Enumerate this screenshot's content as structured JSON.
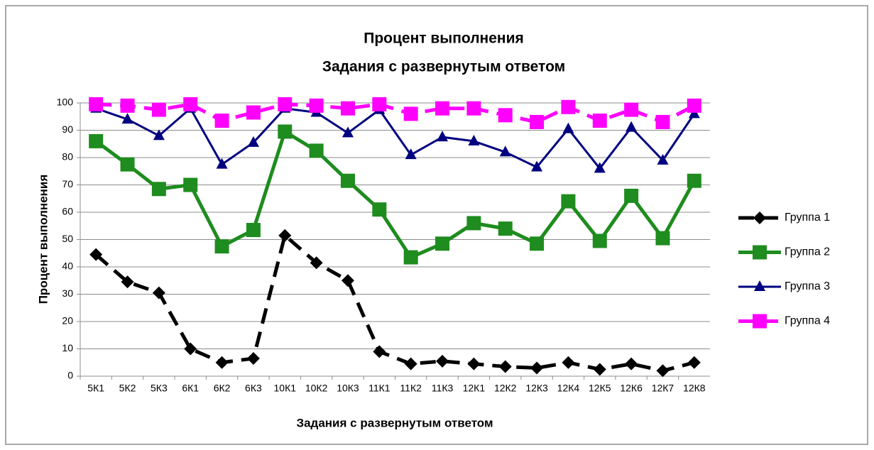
{
  "chart_data": {
    "type": "line",
    "title": "Процент выполнения",
    "subtitle": "Задания с развернутым ответом",
    "x_label": "Задания с развернутым ответом",
    "y_label": "Процент выполнения",
    "categories": [
      "5К1",
      "5К2",
      "5К3",
      "6К1",
      "6К2",
      "6К3",
      "10К1",
      "10К2",
      "10К3",
      "11К1",
      "11К2",
      "11К3",
      "12К1",
      "12К2",
      "12К3",
      "12К4",
      "12К5",
      "12К6",
      "12К7",
      "12К8"
    ],
    "series": [
      {
        "name": "Группа 1",
        "color": "#000000",
        "marker": "diamond",
        "dash": true,
        "values": [
          44.5,
          34.5,
          30.5,
          10,
          5,
          6.5,
          51.5,
          41.5,
          35,
          9,
          4.5,
          5.5,
          4.5,
          3.5,
          3,
          5,
          2.5,
          4.5,
          2,
          5
        ]
      },
      {
        "name": "Группа 2",
        "color": "#1e8c1e",
        "marker": "square",
        "dash": false,
        "values": [
          86,
          77.5,
          68.5,
          70,
          47.5,
          53.5,
          89.5,
          82.5,
          71.5,
          61,
          43.5,
          48.5,
          56,
          54,
          48.5,
          64,
          49.5,
          66,
          50.5,
          71.5
        ]
      },
      {
        "name": "Группа 3",
        "color": "#000080",
        "marker": "triangle",
        "dash": false,
        "values": [
          98,
          94,
          88,
          98,
          77.5,
          85.5,
          98,
          96.5,
          89,
          97.5,
          81,
          87.5,
          86,
          82,
          76.5,
          90.5,
          76,
          91,
          79,
          96
        ]
      },
      {
        "name": "Группа 4",
        "color": "#ff00ff",
        "marker": "square",
        "dash": true,
        "values": [
          99.5,
          99,
          97.5,
          99.5,
          93.5,
          96.5,
          99.5,
          99,
          98,
          99.5,
          96,
          98,
          98,
          95.5,
          93,
          98.5,
          93.5,
          97.5,
          93,
          99
        ]
      }
    ],
    "ylim": [
      0,
      100
    ],
    "yticks": [
      0,
      10,
      20,
      30,
      40,
      50,
      60,
      70,
      80,
      90,
      100
    ],
    "grid": true,
    "legend": "right"
  }
}
